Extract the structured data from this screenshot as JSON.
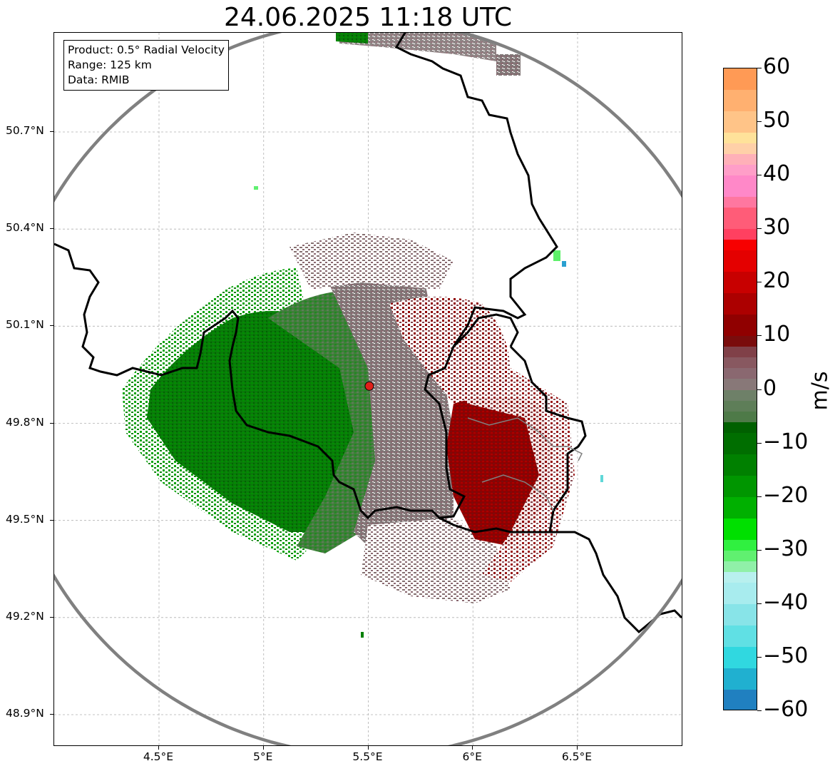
{
  "title": "24.06.2025 11:18 UTC",
  "info": {
    "product": "Product: 0.5° Radial Velocity",
    "range": "Range: 125 km",
    "source": "Data: RMIB"
  },
  "map": {
    "lon_range": [
      4.0,
      7.0
    ],
    "lat_range": [
      48.8,
      51.0
    ],
    "radar_site": {
      "lon": 5.505,
      "lat": 49.915,
      "color": "#e0201a"
    },
    "range_ring_color": "#808080",
    "border_color": "#000000"
  },
  "axes": {
    "lat_ticks": [
      {
        "value": 50.7,
        "label": "50.7°N"
      },
      {
        "value": 50.4,
        "label": "50.4°N"
      },
      {
        "value": 50.1,
        "label": "50.1°N"
      },
      {
        "value": 49.8,
        "label": "49.8°N"
      },
      {
        "value": 49.5,
        "label": "49.5°N"
      },
      {
        "value": 49.2,
        "label": "49.2°N"
      },
      {
        "value": 48.9,
        "label": "48.9°N"
      }
    ],
    "lon_ticks": [
      {
        "value": 4.5,
        "label": "4.5°E"
      },
      {
        "value": 5.0,
        "label": "5°E"
      },
      {
        "value": 5.5,
        "label": "5.5°E"
      },
      {
        "value": 6.0,
        "label": "6°E"
      },
      {
        "value": 6.5,
        "label": "6.5°E"
      }
    ]
  },
  "colorbar": {
    "label": "m/s",
    "vmin": -60,
    "vmax": 60,
    "ticks": [
      {
        "value": 60,
        "label": "60"
      },
      {
        "value": 50,
        "label": "50"
      },
      {
        "value": 40,
        "label": "40"
      },
      {
        "value": 30,
        "label": "30"
      },
      {
        "value": 20,
        "label": "20"
      },
      {
        "value": 10,
        "label": "10"
      },
      {
        "value": 0,
        "label": "0"
      },
      {
        "value": -10,
        "label": "−10"
      },
      {
        "value": -20,
        "label": "−20"
      },
      {
        "value": -30,
        "label": "−30"
      },
      {
        "value": -40,
        "label": "−40"
      },
      {
        "value": -50,
        "label": "−50"
      },
      {
        "value": -60,
        "label": "−60"
      }
    ],
    "stops": [
      {
        "from": 56,
        "to": 60,
        "color": "#ff9a55"
      },
      {
        "from": 52,
        "to": 56,
        "color": "#ffb070"
      },
      {
        "from": 48,
        "to": 52,
        "color": "#ffc488"
      },
      {
        "from": 46,
        "to": 48,
        "color": "#ffe29a"
      },
      {
        "from": 44,
        "to": 46,
        "color": "#ffd0a8"
      },
      {
        "from": 42,
        "to": 44,
        "color": "#ffb0b8"
      },
      {
        "from": 40,
        "to": 42,
        "color": "#ff9ec8"
      },
      {
        "from": 36,
        "to": 40,
        "color": "#ff88c8"
      },
      {
        "from": 34,
        "to": 36,
        "color": "#ff77a0"
      },
      {
        "from": 30,
        "to": 34,
        "color": "#ff5c78"
      },
      {
        "from": 28,
        "to": 30,
        "color": "#ff4060"
      },
      {
        "from": 26,
        "to": 28,
        "color": "#f70000"
      },
      {
        "from": 22,
        "to": 26,
        "color": "#e40000"
      },
      {
        "from": 18,
        "to": 22,
        "color": "#c80000"
      },
      {
        "from": 14,
        "to": 18,
        "color": "#ac0000"
      },
      {
        "from": 10,
        "to": 14,
        "color": "#900000"
      },
      {
        "from": 8,
        "to": 10,
        "color": "#7a0c0c"
      },
      {
        "from": 6,
        "to": 8,
        "color": "#804048"
      },
      {
        "from": 4,
        "to": 6,
        "color": "#885860"
      },
      {
        "from": 2,
        "to": 4,
        "color": "#8a6870"
      },
      {
        "from": 0,
        "to": 2,
        "color": "#887878"
      },
      {
        "from": -2,
        "to": 0,
        "color": "#6e8068"
      },
      {
        "from": -4,
        "to": -2,
        "color": "#5e7e58"
      },
      {
        "from": -6,
        "to": -4,
        "color": "#4e7a48"
      },
      {
        "from": -8,
        "to": -6,
        "color": "#006000"
      },
      {
        "from": -12,
        "to": -8,
        "color": "#006e00"
      },
      {
        "from": -16,
        "to": -12,
        "color": "#008000"
      },
      {
        "from": -20,
        "to": -16,
        "color": "#009600"
      },
      {
        "from": -24,
        "to": -20,
        "color": "#00b000"
      },
      {
        "from": -28,
        "to": -24,
        "color": "#00e000"
      },
      {
        "from": -30,
        "to": -28,
        "color": "#30f040"
      },
      {
        "from": -32,
        "to": -30,
        "color": "#60f070"
      },
      {
        "from": -34,
        "to": -32,
        "color": "#90f0a8"
      },
      {
        "from": -36,
        "to": -34,
        "color": "#b8f0ee"
      },
      {
        "from": -40,
        "to": -36,
        "color": "#a8ecee"
      },
      {
        "from": -44,
        "to": -40,
        "color": "#88e4e8"
      },
      {
        "from": -48,
        "to": -44,
        "color": "#60e0e4"
      },
      {
        "from": -52,
        "to": -48,
        "color": "#30d8e0"
      },
      {
        "from": -56,
        "to": -52,
        "color": "#20b0d0"
      },
      {
        "from": -60,
        "to": -56,
        "color": "#2080c0"
      }
    ]
  }
}
